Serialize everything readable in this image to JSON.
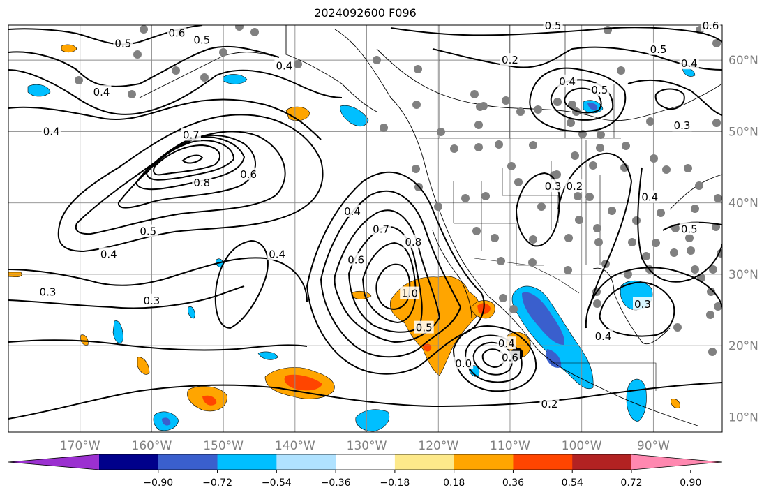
{
  "title": "2024092600 F096",
  "map": {
    "lat_labels": [
      {
        "lat": 60,
        "text": "60°N"
      },
      {
        "lat": 50,
        "text": "50°N"
      },
      {
        "lat": 40,
        "text": "40°N"
      },
      {
        "lat": 30,
        "text": "30°N"
      },
      {
        "lat": 20,
        "text": "20°N"
      },
      {
        "lat": 10,
        "text": "10°N"
      }
    ],
    "lon_labels": [
      {
        "lon": -170,
        "text": "170°W"
      },
      {
        "lon": -160,
        "text": "160°W"
      },
      {
        "lon": -150,
        "text": "150°W"
      },
      {
        "lon": -140,
        "text": "140°W"
      },
      {
        "lon": -130,
        "text": "130°W"
      },
      {
        "lon": -120,
        "text": "120°W"
      },
      {
        "lon": -110,
        "text": "110°W"
      },
      {
        "lon": -100,
        "text": "100°W"
      },
      {
        "lon": -90,
        "text": "90°W"
      }
    ],
    "contour_labels": [
      {
        "text": "0.5",
        "lon": -164,
        "lat": 62.3
      },
      {
        "text": "0.6",
        "lon": -156.5,
        "lat": 63.8
      },
      {
        "text": "0.5",
        "lon": -153,
        "lat": 62.8
      },
      {
        "text": "0.4",
        "lon": -141.5,
        "lat": 59.2
      },
      {
        "text": "0.4",
        "lon": -167,
        "lat": 55.5
      },
      {
        "text": "0.4",
        "lon": -174,
        "lat": 50
      },
      {
        "text": "0.7",
        "lon": -154.5,
        "lat": 49.5
      },
      {
        "text": "0.8",
        "lon": -153,
        "lat": 42.8
      },
      {
        "text": "0.6",
        "lon": -146.5,
        "lat": 44
      },
      {
        "text": "0.5",
        "lon": -160.5,
        "lat": 36
      },
      {
        "text": "0.4",
        "lon": -166,
        "lat": 32.8
      },
      {
        "text": "0.4",
        "lon": -142.5,
        "lat": 32.8
      },
      {
        "text": "0.3",
        "lon": -174.5,
        "lat": 27.5
      },
      {
        "text": "0.3",
        "lon": -160,
        "lat": 26.3
      },
      {
        "text": "0.4",
        "lon": -132,
        "lat": 38.8
      },
      {
        "text": "0.7",
        "lon": -128,
        "lat": 36.3
      },
      {
        "text": "0.6",
        "lon": -131.5,
        "lat": 32
      },
      {
        "text": "0.8",
        "lon": -123.5,
        "lat": 34.5
      },
      {
        "text": "1.0",
        "lon": -124,
        "lat": 27.3
      },
      {
        "text": "0.5",
        "lon": -122,
        "lat": 22.5
      },
      {
        "text": "0.4",
        "lon": -110.5,
        "lat": 20.3
      },
      {
        "text": "0.6",
        "lon": -110,
        "lat": 18.3
      },
      {
        "text": "0.0",
        "lon": -116.5,
        "lat": 17.5
      },
      {
        "text": "0.2",
        "lon": -104.5,
        "lat": 11.8
      },
      {
        "text": "0.3",
        "lon": -104,
        "lat": 42.3
      },
      {
        "text": "0.2",
        "lon": -101,
        "lat": 42.3
      },
      {
        "text": "0.4",
        "lon": -90.5,
        "lat": 40.8
      },
      {
        "text": "0.5",
        "lon": -85,
        "lat": 36.3
      },
      {
        "text": "0.3",
        "lon": -91.5,
        "lat": 25.8
      },
      {
        "text": "0.4",
        "lon": -97,
        "lat": 21.3
      },
      {
        "text": "0.5",
        "lon": -104,
        "lat": 64.8
      },
      {
        "text": "0.2",
        "lon": -110,
        "lat": 60
      },
      {
        "text": "0.4",
        "lon": -102,
        "lat": 57
      },
      {
        "text": "0.5",
        "lon": -97.5,
        "lat": 55.8
      },
      {
        "text": "0.5",
        "lon": -89.3,
        "lat": 61.5
      },
      {
        "text": "0.4",
        "lon": -85,
        "lat": 59.5
      },
      {
        "text": "0.3",
        "lon": -86,
        "lat": 50.8
      },
      {
        "text": "0.6",
        "lon": -82,
        "lat": 64.8
      }
    ]
  },
  "colorbar": {
    "colors": [
      "#9b30d0",
      "#00008b",
      "#3a5fcd",
      "#00bfff",
      "#b0e2ff",
      "#ffffff",
      "#fde98a",
      "#ffa500",
      "#ff4500",
      "#b22222",
      "#ff88b0"
    ],
    "ticks": [
      "−0.90",
      "−0.72",
      "−0.54",
      "−0.36",
      "−0.18",
      "0.18",
      "0.36",
      "0.54",
      "0.72",
      "0.90"
    ]
  }
}
